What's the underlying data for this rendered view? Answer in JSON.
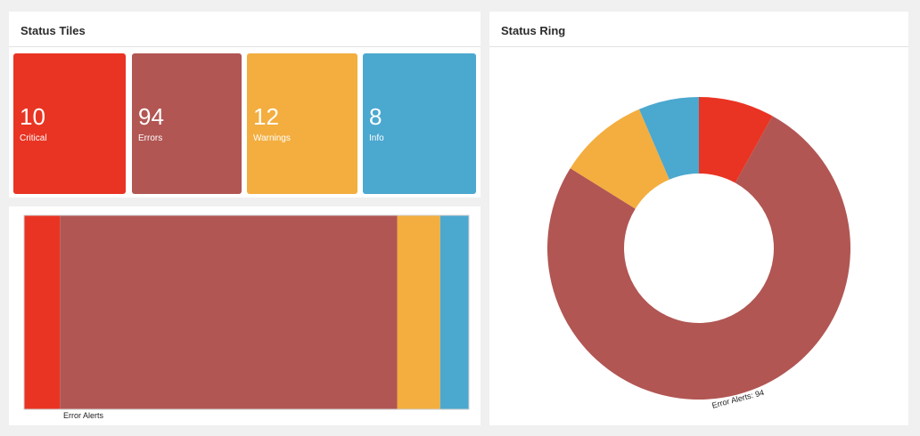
{
  "tiles_panel": {
    "title": "Status Tiles"
  },
  "tiles": [
    {
      "count": "10",
      "label": "Critical",
      "color": "#e93423"
    },
    {
      "count": "94",
      "label": "Errors",
      "color": "#b15653"
    },
    {
      "count": "12",
      "label": "Warnings",
      "color": "#f3ae3f"
    },
    {
      "count": "8",
      "label": "Info",
      "color": "#4ba8cf"
    }
  ],
  "bar": {
    "axis_label": "Error Alerts"
  },
  "ring_panel": {
    "title": "Status Ring",
    "label": "Error Alerts: 94"
  },
  "chart_data": [
    {
      "type": "bar",
      "orientation": "stacked-horizontal",
      "categories": [
        "Critical",
        "Errors",
        "Warnings",
        "Info"
      ],
      "values": [
        10,
        94,
        12,
        8
      ],
      "colors": [
        "#e93423",
        "#b15653",
        "#f3ae3f",
        "#4ba8cf"
      ],
      "annotations": [
        "Error Alerts"
      ]
    },
    {
      "type": "pie",
      "style": "donut",
      "categories": [
        "Critical",
        "Errors",
        "Warnings",
        "Info"
      ],
      "values": [
        10,
        94,
        12,
        8
      ],
      "colors": [
        "#e93423",
        "#b15653",
        "#f3ae3f",
        "#4ba8cf"
      ],
      "annotations": [
        "Error Alerts: 94"
      ]
    }
  ]
}
